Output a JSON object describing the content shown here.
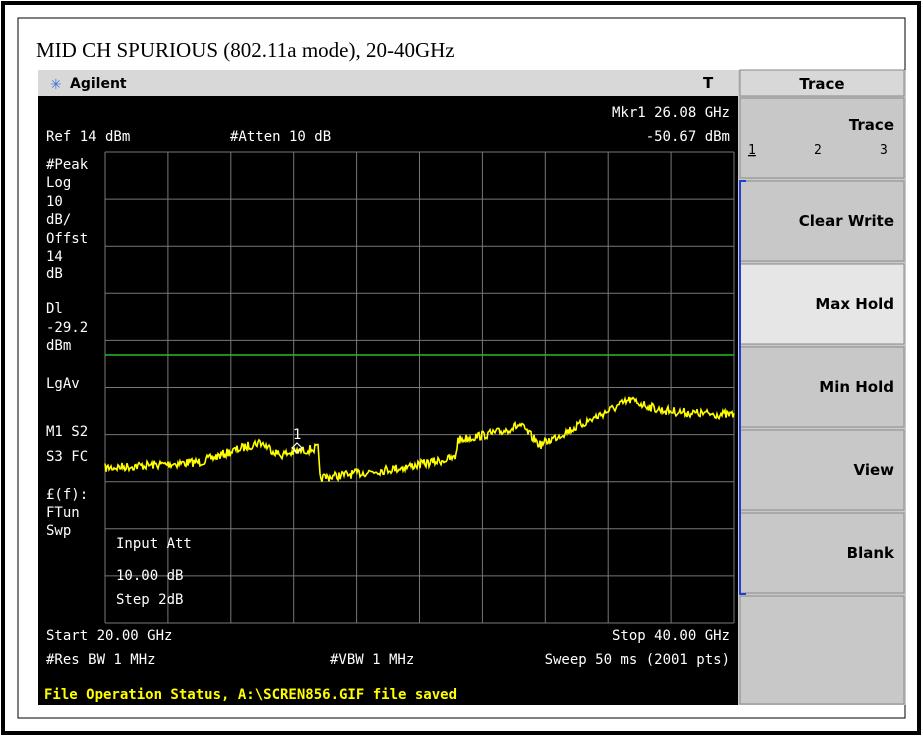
{
  "title": "MID CH SPURIOUS (802.11a mode), 20-40GHz",
  "header": {
    "brand": "Agilent",
    "indicator": "T",
    "menu": "Trace"
  },
  "display": {
    "marker": "Mkr1  26.08 GHz",
    "marker_level": "-50.67 dBm",
    "ref": "Ref 14 dBm",
    "atten": "#Atten 10 dB",
    "left_labels": [
      "#Peak",
      "Log",
      "10",
      "dB/",
      "Offst",
      "14",
      "dB",
      "Dl",
      "-29.2",
      "dBm",
      "LgAv",
      "M1  S2",
      "S3  FC",
      "£(f):",
      "FTun",
      "Swp"
    ],
    "marker_label": "1",
    "active_function": {
      "name": "Input Att",
      "value": "10.00 dB",
      "step": "Step 2dB"
    },
    "start": "Start 20.00 GHz",
    "stop": "Stop 40.00 GHz",
    "rbw": "#Res BW 1 MHz",
    "vbw": "#VBW 1 MHz",
    "sweep": "Sweep 50 ms (2001 pts)"
  },
  "softkeys": [
    {
      "label": "Trace",
      "options": [
        "1",
        "2",
        "3"
      ]
    },
    {
      "label": "Clear Write"
    },
    {
      "label": "Max Hold"
    },
    {
      "label": "Min Hold"
    },
    {
      "label": "View"
    },
    {
      "label": "Blank"
    }
  ],
  "status": "File Operation Status, A:\\SCREN856.GIF file saved"
}
